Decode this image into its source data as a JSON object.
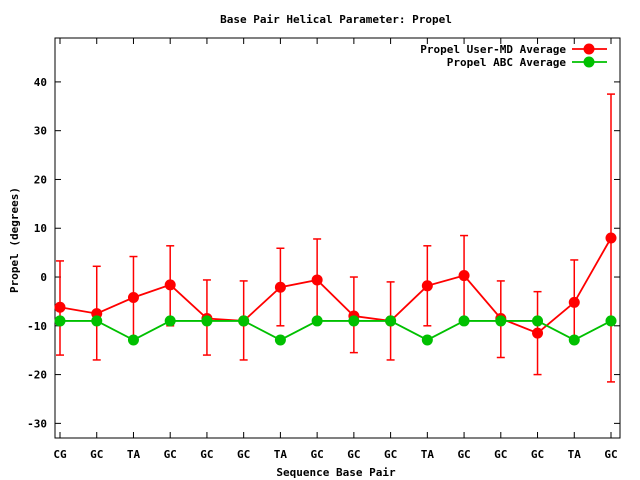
{
  "chart_data": {
    "type": "line",
    "title": "Base Pair Helical Parameter: Propel",
    "xlabel": "Sequence Base Pair",
    "ylabel": "Propel (degrees)",
    "ylim": [
      -33,
      49
    ],
    "yticks": [
      -30,
      -20,
      -10,
      0,
      10,
      20,
      30,
      40
    ],
    "categories": [
      "CG",
      "GC",
      "TA",
      "GC",
      "GC",
      "GC",
      "TA",
      "GC",
      "GC",
      "GC",
      "TA",
      "GC",
      "GC",
      "GC",
      "TA",
      "GC"
    ],
    "grid": false,
    "legend_position": "top-right",
    "series": [
      {
        "name": "Propel User-MD Average",
        "color": "#ff0000",
        "values": [
          -6.2,
          -7.5,
          -4.2,
          -1.6,
          -8.5,
          -9.0,
          -2.1,
          -0.6,
          -8.0,
          -9.0,
          -1.8,
          0.3,
          -8.5,
          -11.5,
          -5.2,
          8.0
        ],
        "err_low": [
          -16.0,
          -17.0,
          -13.0,
          -10.0,
          -16.0,
          -17.0,
          -10.0,
          -9.5,
          -15.5,
          -17.0,
          -10.0,
          -8.5,
          -16.5,
          -20.0,
          -13.5,
          -21.5
        ],
        "err_high": [
          3.3,
          2.2,
          4.2,
          6.4,
          -0.6,
          -0.8,
          5.9,
          7.8,
          0.0,
          -1.0,
          6.4,
          8.5,
          -0.8,
          -3.0,
          3.5,
          37.5
        ]
      },
      {
        "name": "Propel ABC Average",
        "color": "#00c000",
        "values": [
          -9.0,
          -9.0,
          -12.9,
          -9.0,
          -9.0,
          -9.0,
          -12.9,
          -9.0,
          -9.0,
          -9.0,
          -12.9,
          -9.0,
          -9.0,
          -9.0,
          -12.9,
          -9.0
        ]
      }
    ]
  }
}
